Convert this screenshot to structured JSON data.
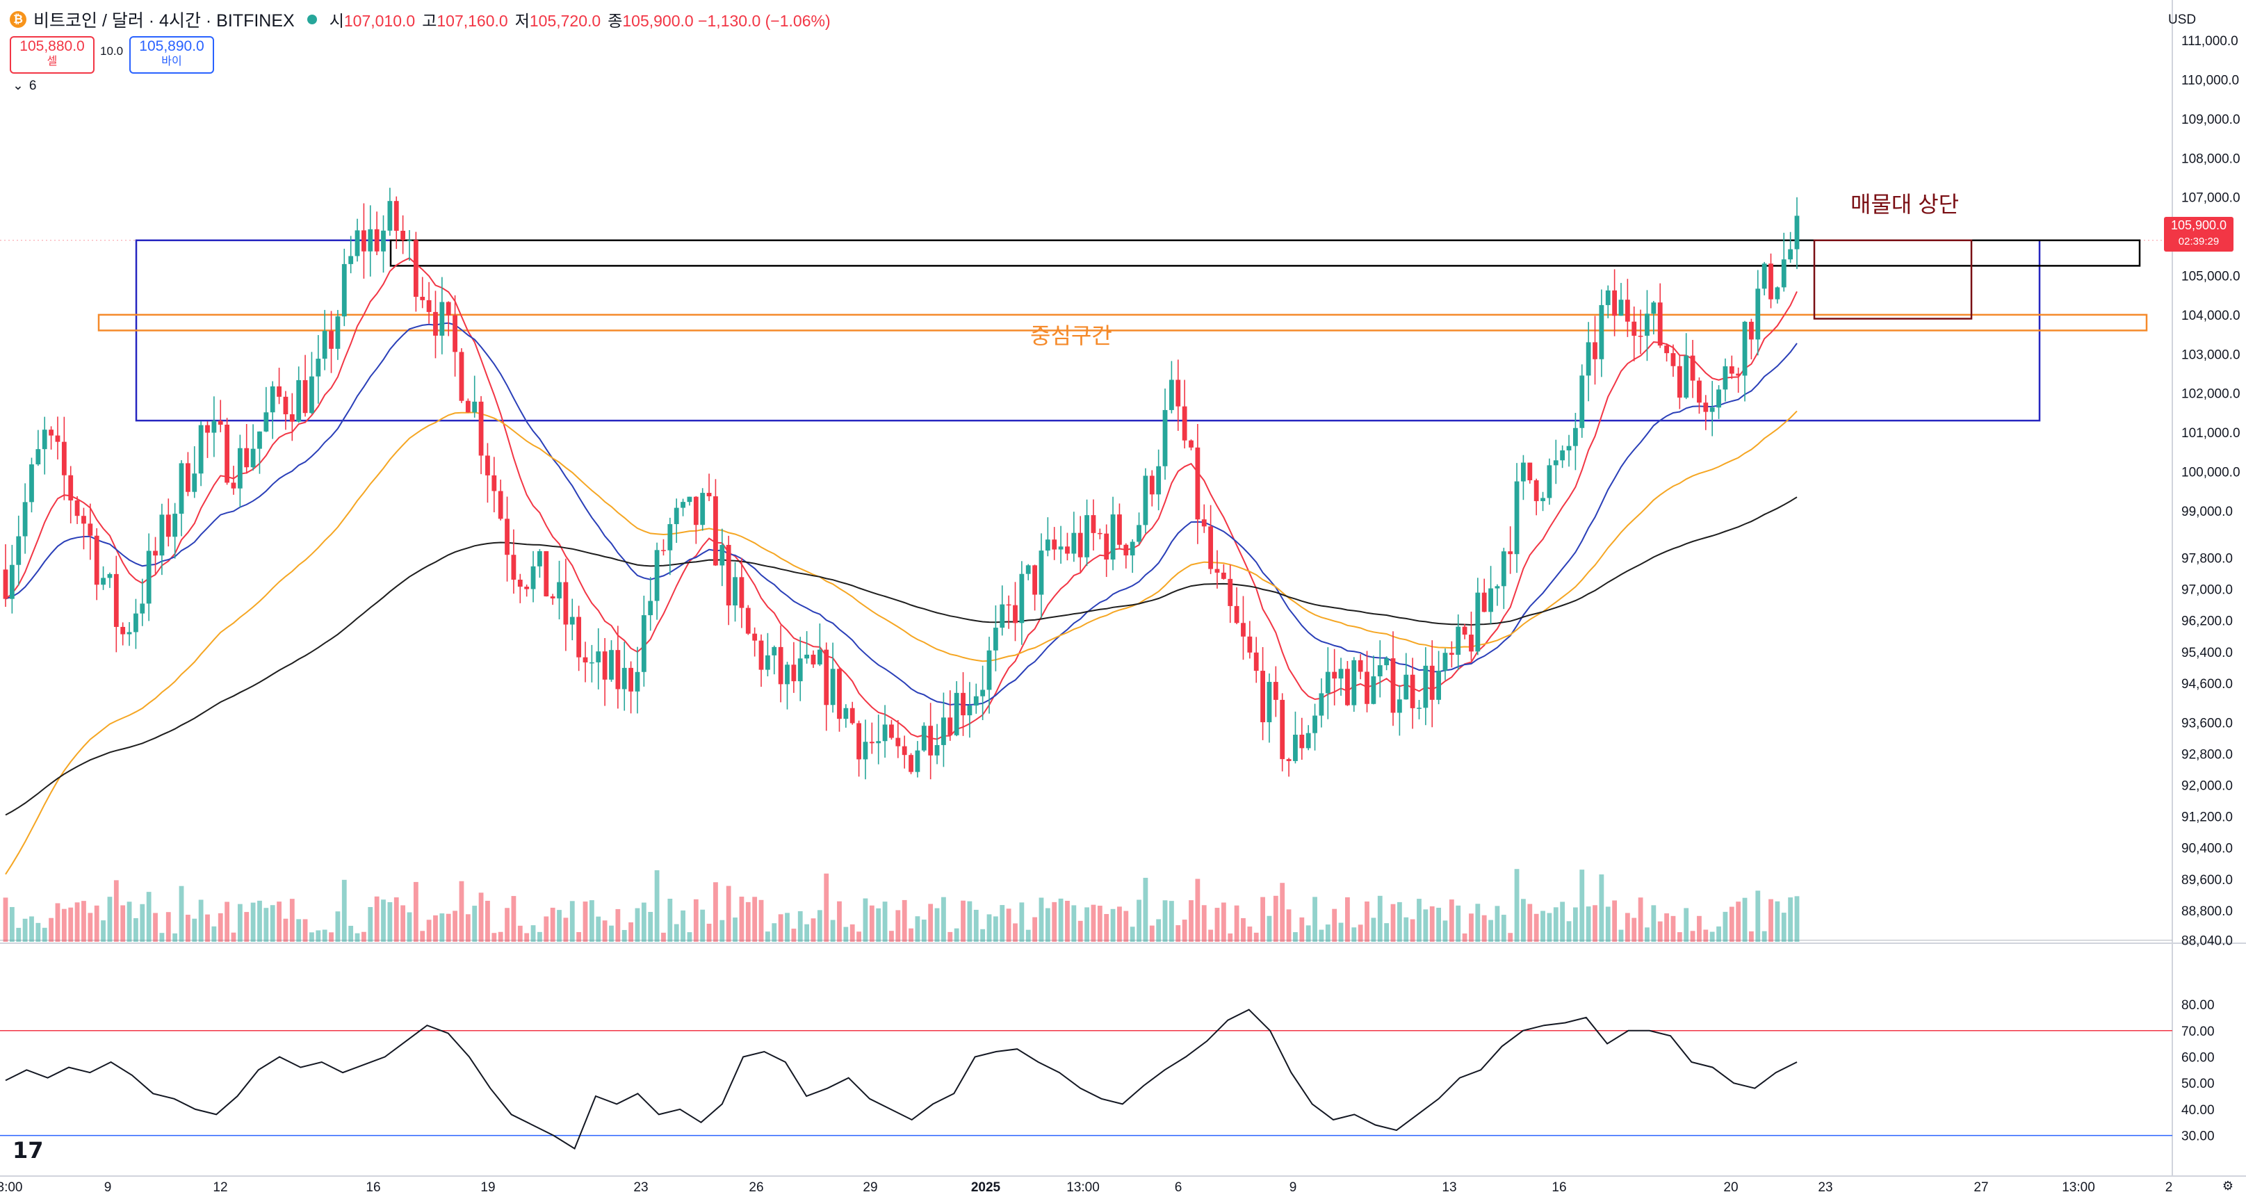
{
  "header": {
    "coin_icon": "bitcoin-icon",
    "title": "비트코인 / 달러 · 4시간 · BITFINEX",
    "ohlc": [
      {
        "k": "시",
        "v": "107,010.0"
      },
      {
        "k": "고",
        "v": "107,160.0"
      },
      {
        "k": "저",
        "v": "105,720.0"
      },
      {
        "k": "종",
        "v": "105,900.0 −1,130.0 (−1.06%)"
      }
    ]
  },
  "trade": {
    "sell_price": "105,880.0",
    "sell_label": "셀",
    "spread": "10.0",
    "buy_price": "105,890.0",
    "buy_label": "바이"
  },
  "indicator_toggle": "6",
  "currency": "USD",
  "last_price": {
    "price": "105,900.0",
    "countdown": "02:39:29"
  },
  "annotations": {
    "upper_zone": "매물대 상단",
    "center_zone": "중심구간"
  },
  "colors": {
    "up": "#26a69a",
    "down": "#f23645",
    "ema_fast": "#f23645",
    "ema_mid": "#2a3fb8",
    "ema_slow": "#f5a623",
    "ema_long": "#1e1e1e",
    "rsi": "#131722",
    "zone_blue": "#2626c0",
    "zone_orange": "#f58a2a",
    "zone_black": "#000000",
    "zone_red": "#7a0f14"
  },
  "chart_data": [
    {
      "type": "candlestick",
      "instrument": "BTC/USD",
      "interval": "4h",
      "y_ticks": [
        "111,000.0",
        "110,000.0",
        "109,000.0",
        "108,000.0",
        "107,000.0",
        "105,000.0",
        "104,000.0",
        "103,000.0",
        "102,000.0",
        "101,000.0",
        "100,000.0",
        "99,000.0",
        "97,800.0",
        "97,000.0",
        "96,200.0",
        "95,400.0",
        "94,600.0",
        "93,600.0",
        "92,800.0",
        "92,000.0",
        "91,200.0",
        "90,400.0",
        "89,600.0",
        "88,800.0",
        "88,040.0"
      ],
      "x_ticks": [
        "3:00",
        "9",
        "12",
        "16",
        "19",
        "23",
        "26",
        "29",
        "2025",
        "13:00",
        "6",
        "9",
        "13",
        "16",
        "20",
        "23",
        "27",
        "13:00",
        "2"
      ],
      "ylim": [
        88000,
        111500
      ],
      "close_series_approx": [
        {
          "x": "Dec 6",
          "close": 97500
        },
        {
          "x": "Dec 7",
          "close": 100800
        },
        {
          "x": "Dec 9",
          "close": 98800
        },
        {
          "x": "Dec 10",
          "close": 95800
        },
        {
          "x": "Dec 11",
          "close": 98200
        },
        {
          "x": "Dec 12",
          "close": 101000
        },
        {
          "x": "Dec 13",
          "close": 100200
        },
        {
          "x": "Dec 14",
          "close": 101800
        },
        {
          "x": "Dec 15",
          "close": 102200
        },
        {
          "x": "Dec 16",
          "close": 105800
        },
        {
          "x": "Dec 17",
          "close": 106300
        },
        {
          "x": "Dec 18",
          "close": 104200
        },
        {
          "x": "Dec 19",
          "close": 101800
        },
        {
          "x": "Dec 20",
          "close": 97800
        },
        {
          "x": "Dec 21",
          "close": 97000
        },
        {
          "x": "Dec 22",
          "close": 94900
        },
        {
          "x": "Dec 23",
          "close": 94600
        },
        {
          "x": "Dec 24",
          "close": 98500
        },
        {
          "x": "Dec 25",
          "close": 98900
        },
        {
          "x": "Dec 26",
          "close": 95800
        },
        {
          "x": "Dec 27",
          "close": 94600
        },
        {
          "x": "Dec 28",
          "close": 94800
        },
        {
          "x": "Dec 29",
          "close": 93200
        },
        {
          "x": "Dec 30",
          "close": 92600
        },
        {
          "x": "Dec 31",
          "close": 93800
        },
        {
          "x": "Jan 1",
          "close": 94600
        },
        {
          "x": "Jan 2",
          "close": 96800
        },
        {
          "x": "Jan 3",
          "close": 98000
        },
        {
          "x": "Jan 4",
          "close": 98300
        },
        {
          "x": "Jan 5",
          "close": 98400
        },
        {
          "x": "Jan 6",
          "close": 102000
        },
        {
          "x": "Jan 7",
          "close": 97200
        },
        {
          "x": "Jan 8",
          "close": 95000
        },
        {
          "x": "Jan 9",
          "close": 92600
        },
        {
          "x": "Jan 10",
          "close": 94800
        },
        {
          "x": "Jan 11",
          "close": 94600
        },
        {
          "x": "Jan 12",
          "close": 94500
        },
        {
          "x": "Jan 13",
          "close": 94800
        },
        {
          "x": "Jan 14",
          "close": 96500
        },
        {
          "x": "Jan 15",
          "close": 99800
        },
        {
          "x": "Jan 16",
          "close": 100000
        },
        {
          "x": "Jan 17",
          "close": 104000
        },
        {
          "x": "Jan 18",
          "close": 104200
        },
        {
          "x": "Jan 19",
          "close": 102600
        },
        {
          "x": "Jan 20",
          "close": 102000
        },
        {
          "x": "Jan 21",
          "close": 104400
        },
        {
          "x": "Jan 22",
          "close": 105900
        }
      ],
      "horizontal_levels": [
        88040
      ]
    },
    {
      "type": "line",
      "name": "RSI",
      "y_ticks": [
        "80.00",
        "70.00",
        "60.00",
        "50.00",
        "40.00",
        "30.00"
      ],
      "ylim": [
        23,
        84
      ],
      "levels": [
        70,
        30
      ],
      "values_approx": [
        51,
        55,
        52,
        56,
        54,
        58,
        53,
        46,
        44,
        40,
        38,
        45,
        55,
        60,
        56,
        58,
        54,
        57,
        60,
        66,
        72,
        69,
        60,
        48,
        38,
        34,
        30,
        25,
        45,
        42,
        46,
        38,
        40,
        35,
        42,
        60,
        62,
        58,
        45,
        48,
        52,
        44,
        40,
        36,
        42,
        46,
        60,
        62,
        63,
        58,
        54,
        48,
        44,
        42,
        49,
        55,
        60,
        66,
        74,
        78,
        70,
        54,
        42,
        36,
        38,
        34,
        32,
        38,
        44,
        52,
        55,
        64,
        70,
        72,
        73,
        75,
        65,
        70,
        70,
        68,
        58,
        56,
        50,
        48,
        54,
        58
      ]
    }
  ]
}
